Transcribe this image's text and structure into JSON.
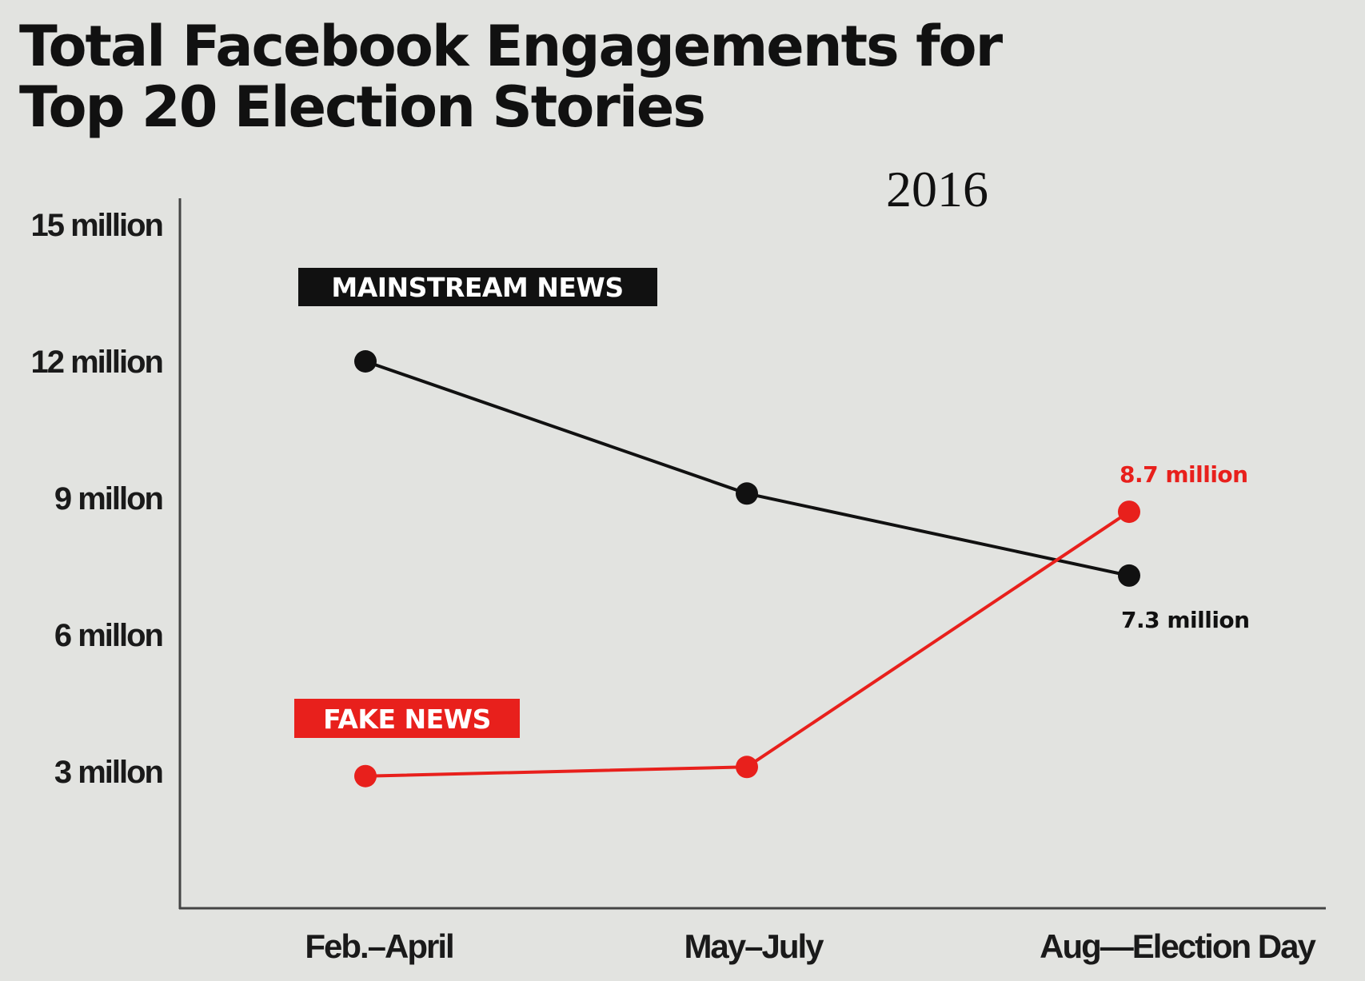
{
  "chart_data": {
    "type": "line",
    "title_lines": [
      "Total Facebook Engagements for",
      "Top 20 Election Stories"
    ],
    "subtitle": "2016",
    "categories": [
      "Feb.–April",
      "May–July",
      "Aug—Election Day"
    ],
    "y_ticks": [
      {
        "value": 3,
        "label": "3 millon"
      },
      {
        "value": 6,
        "label": "6 millon"
      },
      {
        "value": 9,
        "label": "9 millon"
      },
      {
        "value": 12,
        "label": "12 million"
      },
      {
        "value": 15,
        "label": "15 million"
      }
    ],
    "ylim": [
      0,
      15
    ],
    "series": [
      {
        "name": "MAINSTREAM NEWS",
        "color": "#111111",
        "values": [
          12,
          9.1,
          7.3
        ],
        "end_label": "7.3 million"
      },
      {
        "name": "FAKE NEWS",
        "color": "#e8201c",
        "values": [
          2.9,
          3.1,
          8.7
        ],
        "end_label": "8.7 million"
      }
    ],
    "grid": false
  }
}
